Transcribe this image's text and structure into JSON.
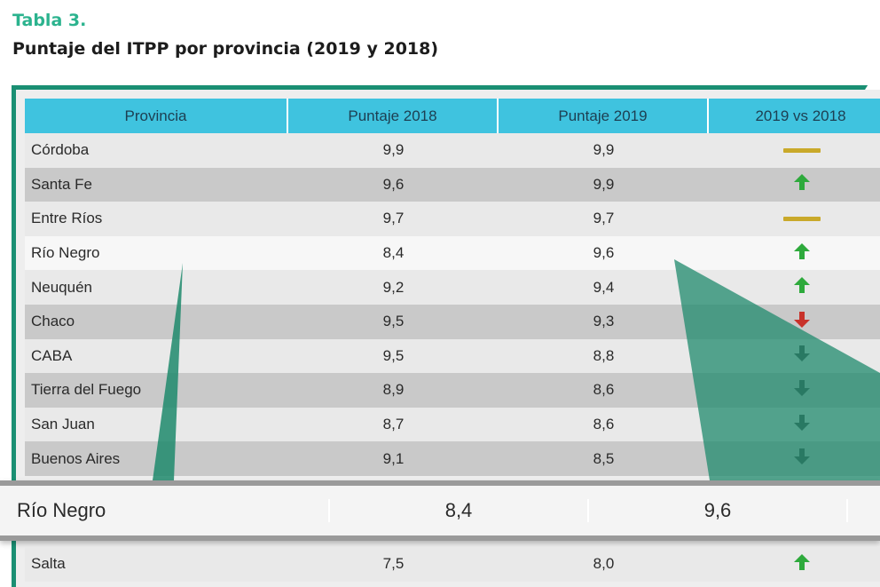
{
  "caption": {
    "label": "Tabla 3.",
    "title": "Puntaje del ITPP por provincia (2019 y 2018)"
  },
  "colors": {
    "accent": "#2bb38e",
    "frame": "#1a8f73",
    "header_bg": "#3fc3df",
    "trend_up": "#2eaa3c",
    "trend_down_red": "#c8322a",
    "trend_down": "#4a4a4a",
    "trend_equal": "#c9a92a"
  },
  "table": {
    "headers": [
      "Provincia",
      "Puntaje 2018",
      "Puntaje 2019",
      "2019 vs 2018"
    ],
    "rows": [
      {
        "provincia": "Córdoba",
        "p2018": "9,9",
        "p2019": "9,9",
        "trend": "equal"
      },
      {
        "provincia": "Santa Fe",
        "p2018": "9,6",
        "p2019": "9,9",
        "trend": "up"
      },
      {
        "provincia": "Entre Ríos",
        "p2018": "9,7",
        "p2019": "9,7",
        "trend": "equal"
      },
      {
        "provincia": "Río Negro",
        "p2018": "8,4",
        "p2019": "9,6",
        "trend": "up"
      },
      {
        "provincia": "Neuquén",
        "p2018": "9,2",
        "p2019": "9,4",
        "trend": "up"
      },
      {
        "provincia": "Chaco",
        "p2018": "9,5",
        "p2019": "9,3",
        "trend": "down-red"
      },
      {
        "provincia": "CABA",
        "p2018": "9,5",
        "p2019": "8,8",
        "trend": "down"
      },
      {
        "provincia": "Tierra del Fuego",
        "p2018": "8,9",
        "p2019": "8,6",
        "trend": "down"
      },
      {
        "provincia": "San Juan",
        "p2018": "8,7",
        "p2019": "8,6",
        "trend": "down"
      },
      {
        "provincia": "Buenos Aires",
        "p2018": "9,1",
        "p2019": "8,5",
        "trend": "down"
      }
    ],
    "highlight": {
      "provincia": "Río Negro",
      "p2018": "8,4",
      "p2019": "9,6"
    },
    "after": [
      {
        "provincia": "Salta",
        "p2018": "7,5",
        "p2019": "8,0",
        "trend": "up"
      }
    ]
  }
}
